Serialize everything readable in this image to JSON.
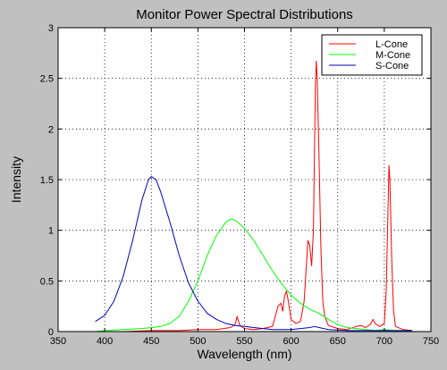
{
  "chart_data": {
    "type": "line",
    "title": "Monitor Power Spectral Distributions",
    "xlabel": "Wavelength (nm)",
    "ylabel": "Intensity",
    "xlim": [
      350,
      750
    ],
    "ylim": [
      0,
      3
    ],
    "xticks": [
      350,
      400,
      450,
      500,
      550,
      600,
      650,
      700,
      750
    ],
    "yticks": [
      0,
      0.5,
      1,
      1.5,
      2,
      2.5,
      3
    ],
    "ytick_labels": [
      "0",
      "0.5",
      "1",
      "1.5",
      "2",
      "2.5",
      "3"
    ],
    "grid": true,
    "legend_position": "top-right",
    "series": [
      {
        "name": "L-Cone",
        "color": "#ff0000",
        "points": [
          [
            390,
            0
          ],
          [
            420,
            0
          ],
          [
            450,
            0.01
          ],
          [
            480,
            0.01
          ],
          [
            500,
            0.02
          ],
          [
            520,
            0.02
          ],
          [
            535,
            0.04
          ],
          [
            540,
            0.07
          ],
          [
            542,
            0.15
          ],
          [
            545,
            0.06
          ],
          [
            550,
            0.03
          ],
          [
            560,
            0.02
          ],
          [
            570,
            0.03
          ],
          [
            580,
            0.05
          ],
          [
            583,
            0.15
          ],
          [
            586,
            0.25
          ],
          [
            589,
            0.28
          ],
          [
            591,
            0.2
          ],
          [
            593,
            0.35
          ],
          [
            595,
            0.4
          ],
          [
            597,
            0.3
          ],
          [
            600,
            0.12
          ],
          [
            605,
            0.08
          ],
          [
            610,
            0.1
          ],
          [
            614,
            0.3
          ],
          [
            616,
            0.6
          ],
          [
            618,
            0.9
          ],
          [
            620,
            0.85
          ],
          [
            622,
            0.65
          ],
          [
            624,
            1.0
          ],
          [
            626,
            2.4
          ],
          [
            627,
            2.67
          ],
          [
            628,
            2.5
          ],
          [
            630,
            1.7
          ],
          [
            632,
            0.8
          ],
          [
            634,
            0.3
          ],
          [
            636,
            0.15
          ],
          [
            640,
            0.06
          ],
          [
            650,
            0.03
          ],
          [
            660,
            0.02
          ],
          [
            670,
            0.05
          ],
          [
            675,
            0.06
          ],
          [
            680,
            0.04
          ],
          [
            685,
            0.07
          ],
          [
            688,
            0.12
          ],
          [
            690,
            0.08
          ],
          [
            695,
            0.05
          ],
          [
            700,
            0.08
          ],
          [
            702,
            0.4
          ],
          [
            704,
            1.2
          ],
          [
            705,
            1.64
          ],
          [
            706,
            1.5
          ],
          [
            708,
            0.7
          ],
          [
            710,
            0.2
          ],
          [
            712,
            0.05
          ],
          [
            720,
            0.02
          ],
          [
            730,
            0.01
          ]
        ]
      },
      {
        "name": "M-Cone",
        "color": "#00ff00",
        "points": [
          [
            390,
            0
          ],
          [
            400,
            0.01
          ],
          [
            420,
            0.02
          ],
          [
            440,
            0.03
          ],
          [
            450,
            0.04
          ],
          [
            460,
            0.05
          ],
          [
            470,
            0.08
          ],
          [
            480,
            0.15
          ],
          [
            490,
            0.3
          ],
          [
            500,
            0.5
          ],
          [
            510,
            0.75
          ],
          [
            520,
            0.95
          ],
          [
            530,
            1.08
          ],
          [
            535,
            1.11
          ],
          [
            540,
            1.1
          ],
          [
            550,
            1.02
          ],
          [
            560,
            0.9
          ],
          [
            570,
            0.75
          ],
          [
            580,
            0.6
          ],
          [
            590,
            0.47
          ],
          [
            600,
            0.36
          ],
          [
            610,
            0.28
          ],
          [
            620,
            0.22
          ],
          [
            630,
            0.18
          ],
          [
            640,
            0.12
          ],
          [
            650,
            0.07
          ],
          [
            660,
            0.04
          ],
          [
            670,
            0.03
          ],
          [
            680,
            0.02
          ],
          [
            690,
            0.01
          ],
          [
            700,
            0.02
          ],
          [
            710,
            0.01
          ],
          [
            730,
            0.01
          ]
        ]
      },
      {
        "name": "S-Cone",
        "color": "#0000c0",
        "points": [
          [
            390,
            0.1
          ],
          [
            400,
            0.16
          ],
          [
            410,
            0.3
          ],
          [
            420,
            0.55
          ],
          [
            430,
            0.9
          ],
          [
            440,
            1.3
          ],
          [
            447,
            1.5
          ],
          [
            450,
            1.53
          ],
          [
            455,
            1.5
          ],
          [
            460,
            1.38
          ],
          [
            470,
            1.08
          ],
          [
            480,
            0.75
          ],
          [
            490,
            0.48
          ],
          [
            500,
            0.3
          ],
          [
            510,
            0.18
          ],
          [
            520,
            0.12
          ],
          [
            530,
            0.08
          ],
          [
            540,
            0.06
          ],
          [
            550,
            0.05
          ],
          [
            560,
            0.04
          ],
          [
            570,
            0.03
          ],
          [
            580,
            0.02
          ],
          [
            590,
            0.02
          ],
          [
            600,
            0.02
          ],
          [
            610,
            0.03
          ],
          [
            620,
            0.04
          ],
          [
            625,
            0.05
          ],
          [
            630,
            0.04
          ],
          [
            640,
            0.02
          ],
          [
            660,
            0.01
          ],
          [
            680,
            0.01
          ],
          [
            700,
            0.01
          ],
          [
            730,
            0.01
          ]
        ]
      }
    ]
  }
}
